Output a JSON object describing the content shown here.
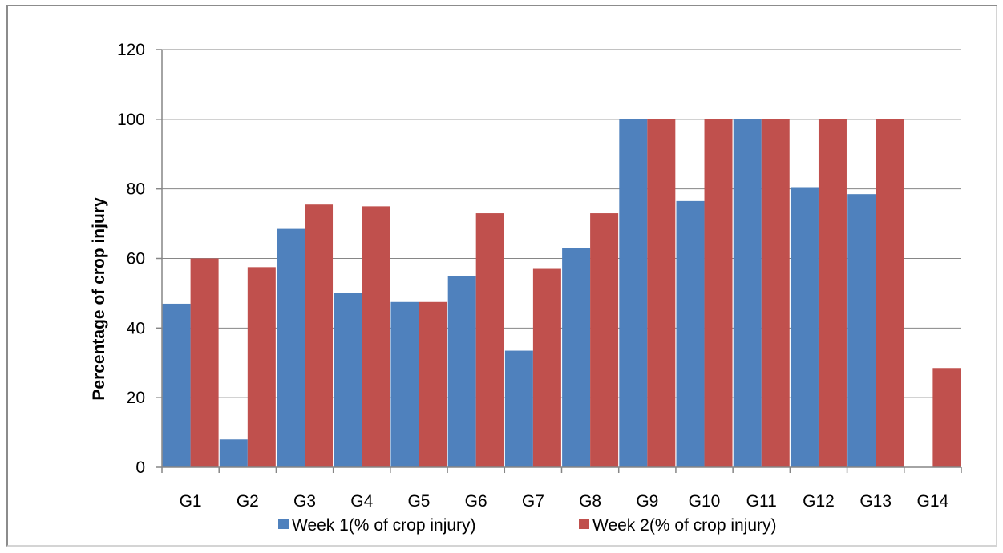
{
  "chart_data": {
    "type": "bar",
    "title": "",
    "xlabel": "",
    "ylabel": "Percentage of crop injury",
    "ylim": [
      0,
      120
    ],
    "yticks": [
      0,
      20,
      40,
      60,
      80,
      100,
      120
    ],
    "grid": true,
    "legend_position": "bottom",
    "categories": [
      "G1",
      "G2",
      "G3",
      "G4",
      "G5",
      "G6",
      "G7",
      "G8",
      "G9",
      "G10",
      "G11",
      "G12",
      "G13",
      "G14"
    ],
    "series": [
      {
        "name": "Week 1(% of crop injury)",
        "color": "#4f81bd",
        "values": [
          47,
          8,
          68.5,
          50,
          47.5,
          55,
          33.5,
          63,
          100,
          76.5,
          100,
          80.5,
          78.5,
          0
        ]
      },
      {
        "name": "Week 2(% of crop injury)",
        "color": "#c0504d",
        "values": [
          60,
          57.5,
          75.5,
          75,
          47.5,
          73,
          57,
          73,
          100,
          100,
          100,
          100,
          100,
          28.5
        ]
      }
    ]
  }
}
